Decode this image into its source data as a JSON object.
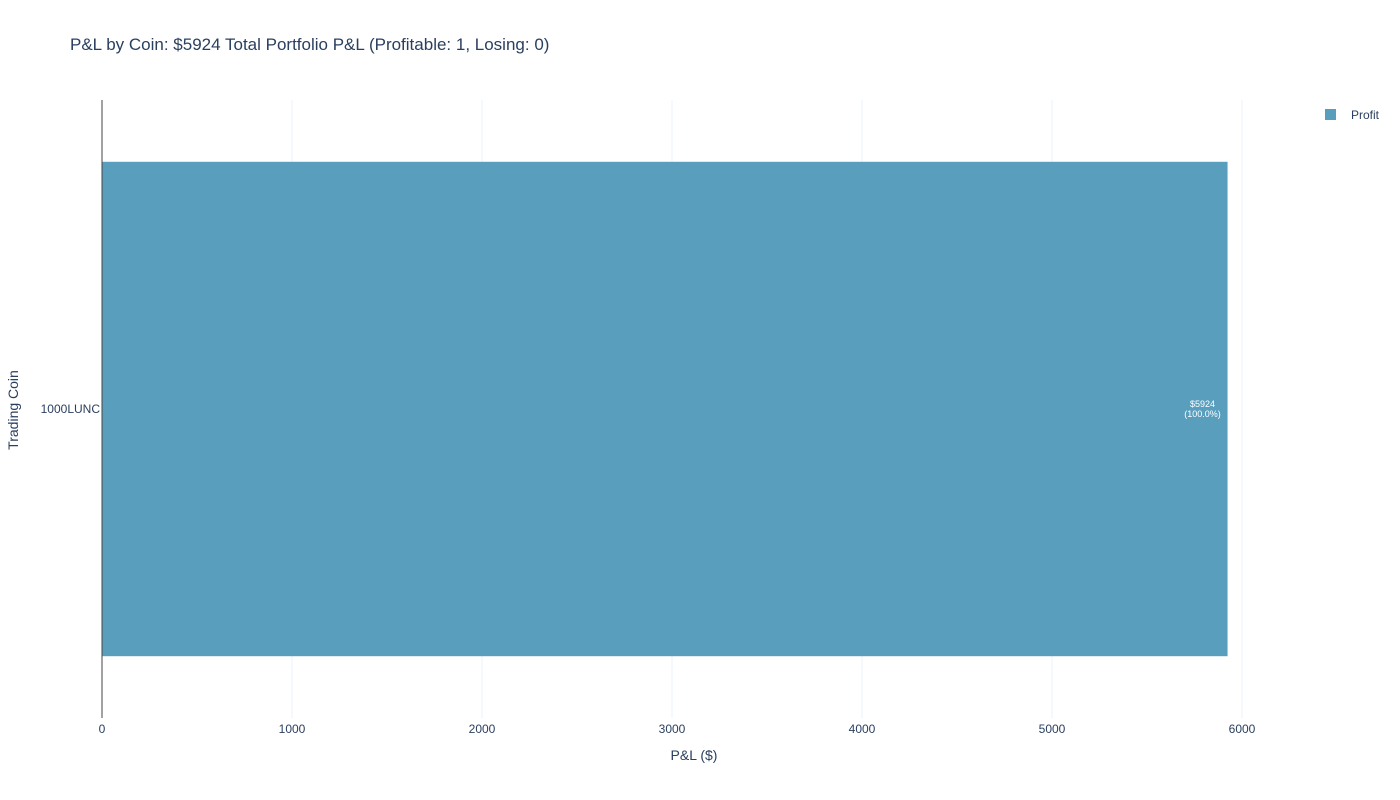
{
  "chart_data": {
    "type": "bar",
    "orientation": "horizontal",
    "title": "P&L by Coin: $5924 Total Portfolio P&L (Profitable: 1, Losing: 0)",
    "xlabel": "P&L ($)",
    "ylabel": "Trading Coin",
    "categories": [
      "1000LUNC"
    ],
    "series": [
      {
        "name": "Profit",
        "values": [
          5924
        ],
        "color": "#5a9ebd",
        "data_labels": [
          [
            "$5924",
            "(100.0%)"
          ]
        ]
      }
    ],
    "xlim": [
      0,
      6500
    ],
    "x_ticks": [
      0,
      1000,
      2000,
      3000,
      4000,
      5000,
      6000
    ],
    "x_tick_labels": [
      "0",
      "1000",
      "2000",
      "3000",
      "4000",
      "5000",
      "6000"
    ],
    "grid": true,
    "legend_position": "top-right"
  }
}
